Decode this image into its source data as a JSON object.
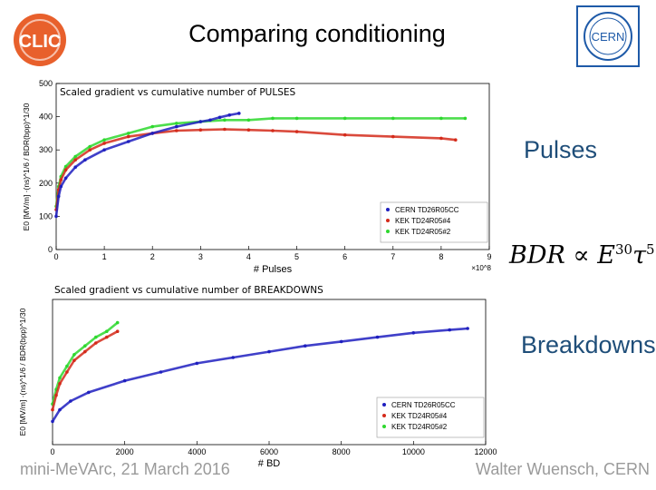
{
  "title": "Comparing conditioning",
  "logos": {
    "left": "CLIC",
    "right": "CERN"
  },
  "side_labels": {
    "pulses": "Pulses",
    "breakdowns": "Breakdowns"
  },
  "formula": {
    "lhs": "BDR",
    "rel": "∝",
    "base1": "E",
    "exp1": "30",
    "base2": "τ",
    "exp2": "5"
  },
  "footer": {
    "left": "mini-MeVArc, 21 March 2016",
    "right": "Walter Wuensch, CERN"
  },
  "colors": {
    "cern": "#1f1fbf",
    "kek_tb": "#d42a1a",
    "kek_td": "#2ed82e",
    "label_blue": "#1f4e79"
  },
  "chart_data": [
    {
      "type": "scatter",
      "caption": "Scaled gradient vs cumulative number of PULSES",
      "xlabel": "# Pulses",
      "x_exponent": "×10^8",
      "ylabel": "E0 [MV/m] ·(ns)^1/6 / BDR(bpp)^1/30",
      "xlim": [
        0,
        9
      ],
      "ylim": [
        0,
        500
      ],
      "xticks": [
        "0",
        "1",
        "2",
        "3",
        "4",
        "5",
        "6",
        "7",
        "8",
        "9"
      ],
      "yticks": [
        "0",
        "100",
        "200",
        "300",
        "400",
        "500"
      ],
      "legend": [
        "CERN TD26R05CC",
        "KEK TD24R05#4",
        "KEK TD24R05#2"
      ],
      "legend_position": "bottom-right",
      "series": [
        {
          "name": "CERN TD26R05CC",
          "color": "#1f1fbf",
          "x": [
            0,
            0.05,
            0.1,
            0.2,
            0.4,
            0.6,
            1.0,
            1.5,
            2.0,
            2.5,
            3.0,
            3.2,
            3.4,
            3.6,
            3.8
          ],
          "y": [
            100,
            160,
            190,
            215,
            248,
            270,
            300,
            325,
            350,
            370,
            385,
            390,
            398,
            405,
            410
          ]
        },
        {
          "name": "KEK TD24R05#4",
          "color": "#d42a1a",
          "x": [
            0,
            0.05,
            0.1,
            0.2,
            0.4,
            0.7,
            1.0,
            1.5,
            2.0,
            2.5,
            3.0,
            3.5,
            4.0,
            4.5,
            5.0,
            6.0,
            7.0,
            8.0,
            8.3
          ],
          "y": [
            120,
            180,
            210,
            240,
            270,
            300,
            320,
            340,
            350,
            358,
            360,
            362,
            360,
            358,
            355,
            345,
            340,
            335,
            330
          ]
        },
        {
          "name": "KEK TD24R05#2",
          "color": "#2ed82e",
          "x": [
            0,
            0.05,
            0.1,
            0.2,
            0.4,
            0.7,
            1.0,
            1.5,
            2.0,
            2.5,
            3.0,
            3.5,
            4.0,
            4.5,
            5.0,
            6.0,
            7.0,
            8.0,
            8.5
          ],
          "y": [
            130,
            190,
            220,
            250,
            280,
            310,
            330,
            350,
            370,
            380,
            385,
            390,
            390,
            395,
            395,
            395,
            395,
            395,
            395
          ]
        }
      ]
    },
    {
      "type": "scatter",
      "caption": "Scaled gradient vs cumulative number of BREAKDOWNS",
      "xlabel": "# BD",
      "ylabel": "E0 [MV/m] ·(ns)^1/6 / BDR(bpp)^1/30",
      "xlim": [
        0,
        12000
      ],
      "ylim": [
        0,
        500
      ],
      "xticks": [
        "0",
        "2000",
        "4000",
        "6000",
        "8000",
        "10000",
        "12000"
      ],
      "yticks": [],
      "legend": [
        "CERN TD26R05CC",
        "KEK TD24R05#4",
        "KEK TD24R05#2"
      ],
      "legend_position": "bottom-right",
      "series": [
        {
          "name": "CERN TD26R05CC",
          "color": "#1f1fbf",
          "x": [
            0,
            200,
            500,
            1000,
            2000,
            3000,
            4000,
            5000,
            6000,
            7000,
            8000,
            9000,
            10000,
            11000,
            11500
          ],
          "y": [
            80,
            120,
            150,
            180,
            220,
            250,
            280,
            300,
            320,
            340,
            355,
            370,
            385,
            395,
            400
          ]
        },
        {
          "name": "KEK TD24R05#4",
          "color": "#d42a1a",
          "x": [
            0,
            100,
            200,
            400,
            600,
            900,
            1200,
            1500,
            1800
          ],
          "y": [
            120,
            170,
            210,
            250,
            290,
            320,
            350,
            370,
            390
          ]
        },
        {
          "name": "KEK TD24R05#2",
          "color": "#2ed82e",
          "x": [
            0,
            100,
            200,
            400,
            600,
            900,
            1200,
            1500,
            1800
          ],
          "y": [
            140,
            190,
            230,
            270,
            310,
            340,
            370,
            390,
            420
          ]
        }
      ]
    }
  ]
}
